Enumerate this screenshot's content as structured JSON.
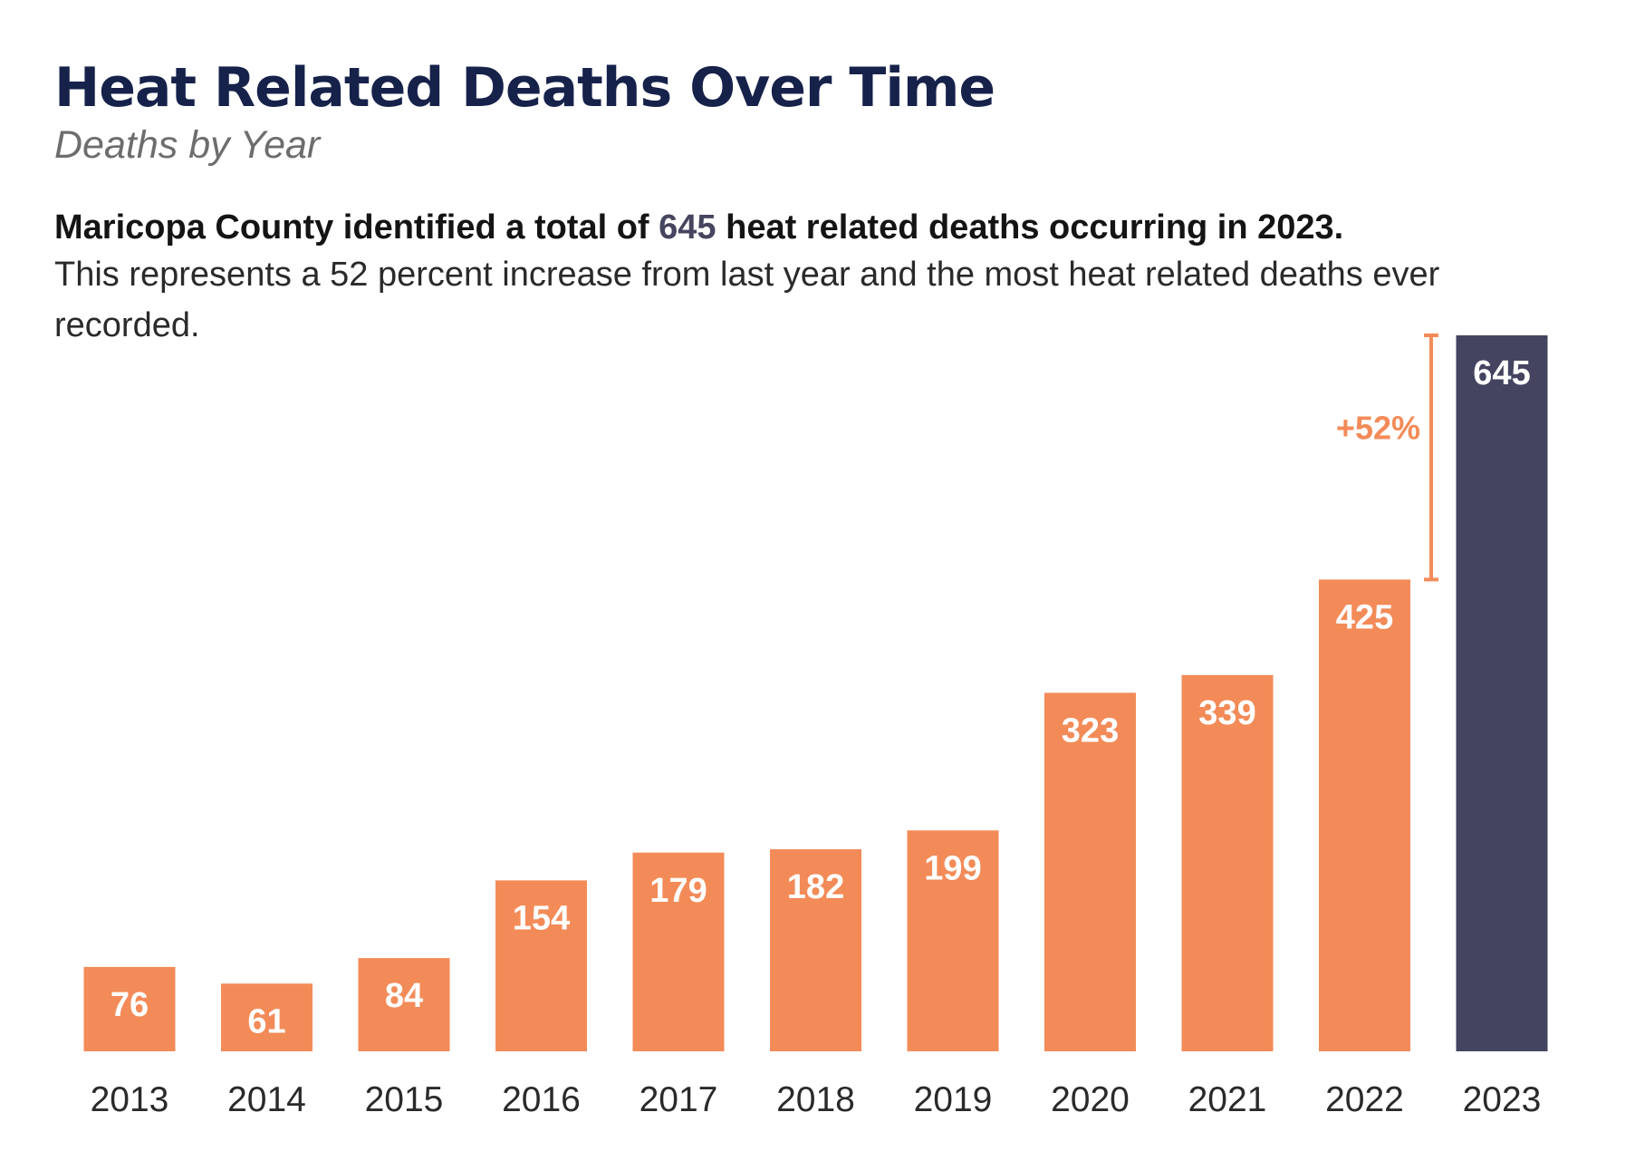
{
  "title": "Heat Related Deaths Over Time",
  "subtitle": "Deaths by Year",
  "summary": {
    "lead_prefix": "Maricopa County identified a total of ",
    "lead_highlight": "645",
    "lead_suffix": " heat related deaths occurring in 2023.",
    "body": "This represents a 52 percent increase from last year and the most heat related deaths ever recorded."
  },
  "colors": {
    "bar": "#f38b58",
    "highlight_bar": "#444461",
    "bar_label": "#ffffff",
    "axis_label": "#2a2a2a",
    "annotation": "#f38b58"
  },
  "chart_data": {
    "type": "bar",
    "title": "Heat Related Deaths Over Time",
    "subtitle": "Deaths by Year",
    "xlabel": "",
    "ylabel": "",
    "categories": [
      "2013",
      "2014",
      "2015",
      "2016",
      "2017",
      "2018",
      "2019",
      "2020",
      "2021",
      "2022",
      "2023"
    ],
    "values": [
      76,
      61,
      84,
      154,
      179,
      182,
      199,
      323,
      339,
      425,
      645
    ],
    "labels": [
      "76",
      "61",
      "84",
      "154",
      "179",
      "182",
      "199",
      "323",
      "339",
      "425",
      "645"
    ],
    "highlight_category": "2023",
    "ylim": [
      0,
      645
    ],
    "grid": false,
    "annotation": {
      "text": "+52%",
      "from_value": 425,
      "to_value": 645
    }
  }
}
